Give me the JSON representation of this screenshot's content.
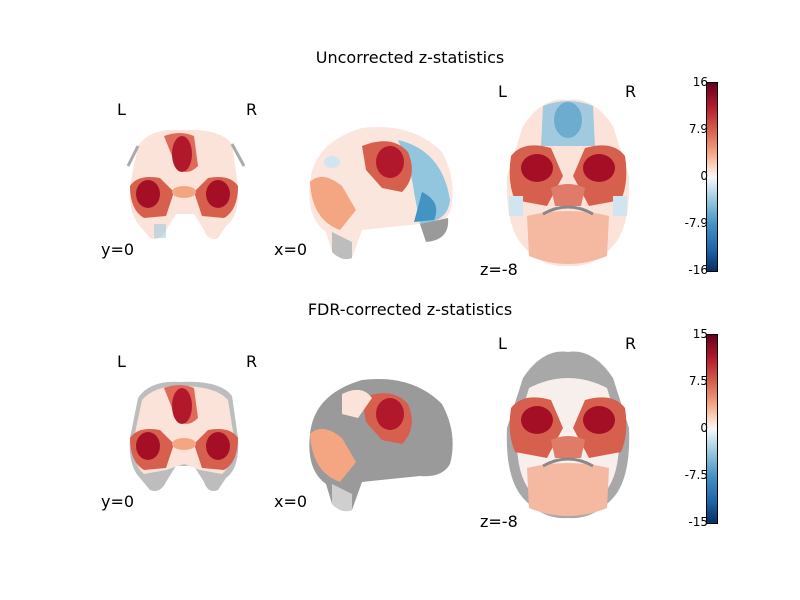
{
  "panels": [
    {
      "title": "Uncorrected z-statistics",
      "coronal": {
        "cut": "y=0",
        "left": "L",
        "right": "R"
      },
      "sagittal": {
        "cut": "x=0"
      },
      "axial": {
        "cut": "z=-8",
        "left": "L",
        "right": "R"
      },
      "colorbar": {
        "ticks": [
          "16",
          "7.9",
          "0",
          "-7.9",
          "-16"
        ]
      }
    },
    {
      "title": "FDR-corrected z-statistics",
      "coronal": {
        "cut": "y=0",
        "left": "L",
        "right": "R"
      },
      "sagittal": {
        "cut": "x=0"
      },
      "axial": {
        "cut": "z=-8",
        "left": "L",
        "right": "R"
      },
      "colorbar": {
        "ticks": [
          "15",
          "7.5",
          "0",
          "-7.5",
          "-15"
        ]
      }
    }
  ],
  "colors": {
    "dark_red": "#67001f",
    "red": "#b2182b",
    "salmon": "#f4a582",
    "white": "#f7f7f7",
    "blue": "#2166ac",
    "gray_brain": "#9a9a9a"
  }
}
